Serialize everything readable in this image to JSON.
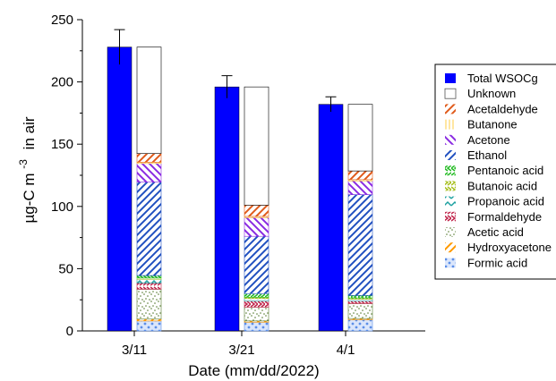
{
  "chart_data": {
    "type": "bar",
    "stacked": true,
    "xlabel": "Date (mm/dd/2022)",
    "ylabel": "µg-C m",
    "ylabel_sup": "-3",
    "ylabel_suffix": "in air",
    "ylim": [
      0,
      250
    ],
    "yticks": [
      0,
      50,
      100,
      150,
      200,
      250
    ],
    "categories": [
      "3/11",
      "3/21",
      "4/1"
    ],
    "total": {
      "name": "Total WSOCg",
      "values": [
        228,
        196,
        182
      ],
      "errors": [
        14,
        9,
        6
      ],
      "color": "#0000ff"
    },
    "stack_series": [
      {
        "name": "Formic acid",
        "values": [
          8,
          7,
          9
        ],
        "color": "#5b8ee8",
        "pattern": "dots"
      },
      {
        "name": "Hydroxyacetone",
        "values": [
          1.5,
          1,
          1
        ],
        "color": "#ff9900",
        "pattern": "diag-down"
      },
      {
        "name": "Acetic acid",
        "values": [
          24,
          11,
          12
        ],
        "color": "#557a2e",
        "pattern": "stipple"
      },
      {
        "name": "Formaldehyde",
        "values": [
          5,
          5,
          2
        ],
        "color": "#c0244a",
        "pattern": "chevron"
      },
      {
        "name": "Propanoic acid",
        "values": [
          3,
          2,
          1.5
        ],
        "color": "#1aa0a0",
        "pattern": "hatch-tri"
      },
      {
        "name": "Butanoic acid",
        "values": [
          1,
          1,
          1
        ],
        "color": "#a8c020",
        "pattern": "chevron"
      },
      {
        "name": "Pentanoic acid",
        "values": [
          2,
          3,
          2
        ],
        "color": "#22bb22",
        "pattern": "chevron-left"
      },
      {
        "name": "Ethanol",
        "values": [
          75,
          46,
          81
        ],
        "color": "#2050c0",
        "pattern": "diag-down"
      },
      {
        "name": "Acetone",
        "values": [
          15,
          15,
          11
        ],
        "color": "#8a2be2",
        "pattern": "diag-up"
      },
      {
        "name": "Butanone",
        "values": [
          1,
          1,
          1
        ],
        "color": "#ffcc44",
        "pattern": "vert"
      },
      {
        "name": "Acetaldehyde",
        "values": [
          7,
          9,
          7
        ],
        "color": "#e05a1a",
        "pattern": "diag-down"
      },
      {
        "name": "Unknown",
        "values": [
          85.5,
          95,
          53.5
        ],
        "color": "#ffffff",
        "pattern": "none"
      }
    ],
    "legend_order": [
      "Total WSOCg",
      "Unknown",
      "Acetaldehyde",
      "Butanone",
      "Acetone",
      "Ethanol",
      "Pentanoic acid",
      "Butanoic acid",
      "Propanoic acid",
      "Formaldehyde",
      "Acetic acid",
      "Hydroxyacetone",
      "Formic acid"
    ],
    "legend_placement": "right",
    "grid": false
  }
}
